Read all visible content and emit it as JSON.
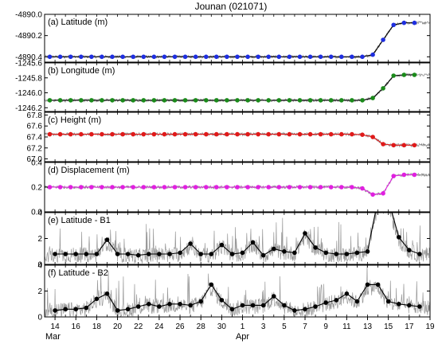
{
  "figure_title": "Jounan (021071)",
  "x_axis": {
    "tick_labels": [
      "14",
      "16",
      "18",
      "20",
      "22",
      "24",
      "26",
      "28",
      "30",
      "1",
      "3",
      "5",
      "7",
      "9",
      "11",
      "13",
      "15",
      "17",
      "19"
    ],
    "month_labels": [
      {
        "text": "Mar",
        "at": "Mar 13.5"
      },
      {
        "text": "Apr",
        "at": "Apr 1"
      }
    ]
  },
  "chart_data": [
    {
      "type": "line",
      "title": "(a) Latitude (m)",
      "x_units": "day index from Mar 13 (0 = Mar 13)",
      "ylim": [
        -4890.45,
        -4890.0
      ],
      "yticks": [
        "-4890.4",
        "-4890.2",
        "-4890.0"
      ],
      "ytick_values": [
        -4890.4,
        -4890.2,
        -4890.0
      ],
      "marker_color": "#1f2fe0",
      "line_color": "#000000",
      "raw_color": "#888888",
      "daily": {
        "x": [
          0.5,
          1.5,
          2.5,
          3.5,
          4.5,
          5.5,
          6.5,
          7.5,
          8.5,
          9.5,
          10.5,
          11.5,
          12.5,
          13.5,
          14.5,
          15.5,
          16.5,
          17.5,
          18.5,
          19.5,
          20.5,
          21.5,
          22.5,
          23.5,
          24.5,
          25.5,
          26.5,
          27.5,
          28.5,
          29.5,
          30.5,
          31.5,
          32.5,
          33.5,
          34.5,
          35.5
        ],
        "y": [
          -4890.4,
          -4890.4,
          -4890.4,
          -4890.4,
          -4890.4,
          -4890.4,
          -4890.4,
          -4890.4,
          -4890.4,
          -4890.4,
          -4890.4,
          -4890.4,
          -4890.4,
          -4890.4,
          -4890.4,
          -4890.4,
          -4890.4,
          -4890.4,
          -4890.4,
          -4890.4,
          -4890.4,
          -4890.4,
          -4890.4,
          -4890.4,
          -4890.4,
          -4890.4,
          -4890.4,
          -4890.4,
          -4890.4,
          -4890.4,
          -4890.4,
          -4890.38,
          -4890.24,
          -4890.1,
          -4890.08,
          -4890.08
        ]
      }
    },
    {
      "type": "line",
      "title": "(b) Longitude (m)",
      "x_units": "day index from Mar 13 (0 = Mar 13)",
      "ylim": [
        -1246.25,
        -1245.6
      ],
      "yticks": [
        "-1246.2",
        "-1246.0",
        "-1245.8",
        "-1245.6"
      ],
      "ytick_values": [
        -1246.2,
        -1246.0,
        -1245.8,
        -1245.6
      ],
      "marker_color": "#1a8a1a",
      "line_color": "#000000",
      "raw_color": "#888888",
      "daily": {
        "x": [
          0.5,
          1.5,
          2.5,
          3.5,
          4.5,
          5.5,
          6.5,
          7.5,
          8.5,
          9.5,
          10.5,
          11.5,
          12.5,
          13.5,
          14.5,
          15.5,
          16.5,
          17.5,
          18.5,
          19.5,
          20.5,
          21.5,
          22.5,
          23.5,
          24.5,
          25.5,
          26.5,
          27.5,
          28.5,
          29.5,
          30.5,
          31.5,
          32.5,
          33.5,
          34.5,
          35.5
        ],
        "y": [
          -1246.1,
          -1246.1,
          -1246.1,
          -1246.1,
          -1246.1,
          -1246.1,
          -1246.1,
          -1246.1,
          -1246.1,
          -1246.1,
          -1246.1,
          -1246.1,
          -1246.1,
          -1246.1,
          -1246.1,
          -1246.1,
          -1246.1,
          -1246.1,
          -1246.1,
          -1246.1,
          -1246.1,
          -1246.1,
          -1246.1,
          -1246.1,
          -1246.1,
          -1246.1,
          -1246.1,
          -1246.1,
          -1246.1,
          -1246.1,
          -1246.1,
          -1246.07,
          -1245.94,
          -1245.77,
          -1245.76,
          -1245.76
        ]
      }
    },
    {
      "type": "line",
      "title": "(c) Height (m)",
      "x_units": "day index from Mar 13 (0 = Mar 13)",
      "ylim": [
        66.95,
        67.85
      ],
      "yticks": [
        "67.0",
        "67.2",
        "67.4",
        "67.6",
        "67.8"
      ],
      "ytick_values": [
        67.0,
        67.2,
        67.4,
        67.6,
        67.8
      ],
      "marker_color": "#e01a1a",
      "line_color": "#e01a1a",
      "raw_color": "#888888",
      "daily": {
        "x": [
          0.5,
          1.5,
          2.5,
          3.5,
          4.5,
          5.5,
          6.5,
          7.5,
          8.5,
          9.5,
          10.5,
          11.5,
          12.5,
          13.5,
          14.5,
          15.5,
          16.5,
          17.5,
          18.5,
          19.5,
          20.5,
          21.5,
          22.5,
          23.5,
          24.5,
          25.5,
          26.5,
          27.5,
          28.5,
          29.5,
          30.5,
          31.5,
          32.5,
          33.5,
          34.5,
          35.5
        ],
        "y": [
          67.45,
          67.45,
          67.45,
          67.45,
          67.45,
          67.45,
          67.45,
          67.45,
          67.45,
          67.45,
          67.45,
          67.45,
          67.45,
          67.45,
          67.45,
          67.45,
          67.45,
          67.45,
          67.45,
          67.45,
          67.45,
          67.45,
          67.45,
          67.45,
          67.45,
          67.45,
          67.45,
          67.45,
          67.45,
          67.45,
          67.44,
          67.4,
          67.27,
          67.25,
          67.25,
          67.25
        ]
      }
    },
    {
      "type": "line",
      "title": "(d) Displacement (m)",
      "x_units": "day index from Mar 13 (0 = Mar 13)",
      "ylim": [
        0.0,
        0.4
      ],
      "yticks": [
        "0.0",
        "0.2",
        "0.4"
      ],
      "ytick_values": [
        0.0,
        0.2,
        0.4
      ],
      "marker_color": "#e020e0",
      "line_color": "#e020e0",
      "raw_color": "#888888",
      "daily": {
        "x": [
          0.5,
          1.5,
          2.5,
          3.5,
          4.5,
          5.5,
          6.5,
          7.5,
          8.5,
          9.5,
          10.5,
          11.5,
          12.5,
          13.5,
          14.5,
          15.5,
          16.5,
          17.5,
          18.5,
          19.5,
          20.5,
          21.5,
          22.5,
          23.5,
          24.5,
          25.5,
          26.5,
          27.5,
          28.5,
          29.5,
          30.5,
          31.5,
          32.5,
          33.5,
          34.5,
          35.5
        ],
        "y": [
          0.2,
          0.2,
          0.2,
          0.2,
          0.2,
          0.2,
          0.2,
          0.2,
          0.2,
          0.2,
          0.2,
          0.2,
          0.2,
          0.2,
          0.2,
          0.2,
          0.2,
          0.2,
          0.2,
          0.2,
          0.2,
          0.2,
          0.2,
          0.2,
          0.2,
          0.2,
          0.2,
          0.2,
          0.2,
          0.2,
          0.19,
          0.14,
          0.15,
          0.29,
          0.3,
          0.3
        ]
      }
    },
    {
      "type": "line",
      "title": "(e) Latitude - B1",
      "x_units": "day index from Mar 13 (0 = Mar 13)",
      "ylim": [
        0,
        4
      ],
      "yticks": [
        "0",
        "2",
        "4"
      ],
      "ytick_values": [
        0,
        2,
        4
      ],
      "marker_color": "#000000",
      "line_color": "#000000",
      "raw_color": "#999999",
      "daily": {
        "x": [
          1.0,
          2.0,
          3.0,
          4.0,
          5.0,
          6.0,
          7.0,
          8.0,
          9.0,
          10.0,
          11.0,
          12.0,
          13.0,
          14.0,
          15.0,
          16.0,
          17.0,
          18.0,
          19.0,
          20.0,
          21.0,
          22.0,
          23.0,
          24.0,
          25.0,
          26.0,
          27.0,
          28.0,
          29.0,
          30.0,
          31.0,
          32.0,
          33.0,
          34.0,
          35.0,
          36.0
        ],
        "y": [
          0.8,
          0.8,
          0.8,
          0.8,
          0.8,
          1.9,
          0.8,
          0.8,
          0.7,
          0.8,
          0.8,
          0.8,
          0.9,
          1.6,
          0.8,
          0.8,
          1.5,
          0.8,
          0.9,
          1.7,
          0.7,
          1.2,
          1.0,
          0.9,
          2.4,
          1.3,
          0.9,
          0.8,
          0.8,
          0.9,
          1.0,
          5.0,
          5.0,
          2.1,
          1.1,
          0.8
        ]
      }
    },
    {
      "type": "line",
      "title": "(f) Latitude - B2",
      "x_units": "day index from Mar 13 (0 = Mar 13)",
      "ylim": [
        0,
        4
      ],
      "yticks": [
        "0",
        "2",
        "4"
      ],
      "ytick_values": [
        0,
        2,
        4
      ],
      "marker_color": "#000000",
      "line_color": "#000000",
      "raw_color": "#999999",
      "daily": {
        "x": [
          1.0,
          2.0,
          3.0,
          4.0,
          5.0,
          6.0,
          7.0,
          8.0,
          9.0,
          10.0,
          11.0,
          12.0,
          13.0,
          14.0,
          15.0,
          16.0,
          17.0,
          18.0,
          19.0,
          20.0,
          21.0,
          22.0,
          23.0,
          24.0,
          25.0,
          26.0,
          27.0,
          28.0,
          29.0,
          30.0,
          31.0,
          32.0,
          33.0,
          34.0,
          35.0,
          36.0
        ],
        "y": [
          0.5,
          0.6,
          0.6,
          0.7,
          1.4,
          1.8,
          0.5,
          0.6,
          0.8,
          1.0,
          0.8,
          1.0,
          1.0,
          0.9,
          1.2,
          2.5,
          1.3,
          0.6,
          0.9,
          0.9,
          0.9,
          1.6,
          0.9,
          0.5,
          0.6,
          0.8,
          1.1,
          1.3,
          1.8,
          1.2,
          2.5,
          2.5,
          1.2,
          1.0,
          0.9,
          0.8
        ]
      }
    }
  ]
}
